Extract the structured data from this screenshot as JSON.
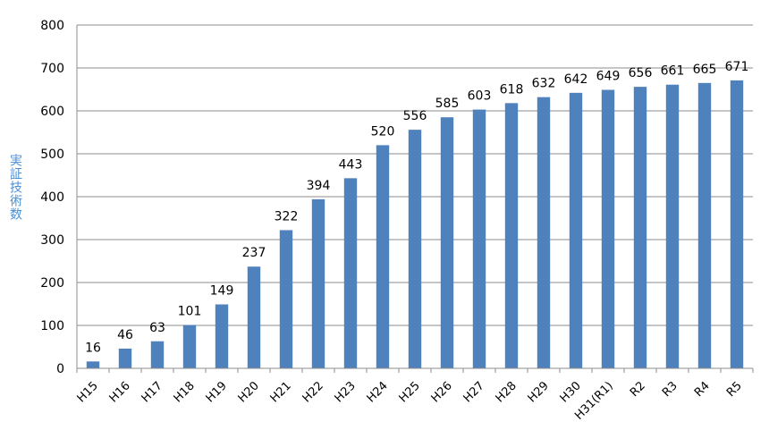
{
  "chart_data": {
    "type": "bar",
    "categories": [
      "H15",
      "H16",
      "H17",
      "H18",
      "H19",
      "H20",
      "H21",
      "H22",
      "H23",
      "H24",
      "H25",
      "H26",
      "H27",
      "H28",
      "H29",
      "H30",
      "H31(R1)",
      "R2",
      "R3",
      "R4",
      "R5"
    ],
    "values": [
      16,
      46,
      63,
      101,
      149,
      237,
      322,
      394,
      443,
      520,
      556,
      585,
      603,
      618,
      632,
      642,
      649,
      656,
      661,
      665,
      671
    ],
    "title": "",
    "xlabel": "",
    "ylabel": "実証技術数",
    "ylim": [
      0,
      800
    ],
    "yticks": [
      0,
      100,
      200,
      300,
      400,
      500,
      600,
      700,
      800
    ],
    "grid": true,
    "bar_color": "#4f81bd",
    "ylabel_color": "#4a90d9",
    "gridline_color": "#8c8c8c"
  }
}
